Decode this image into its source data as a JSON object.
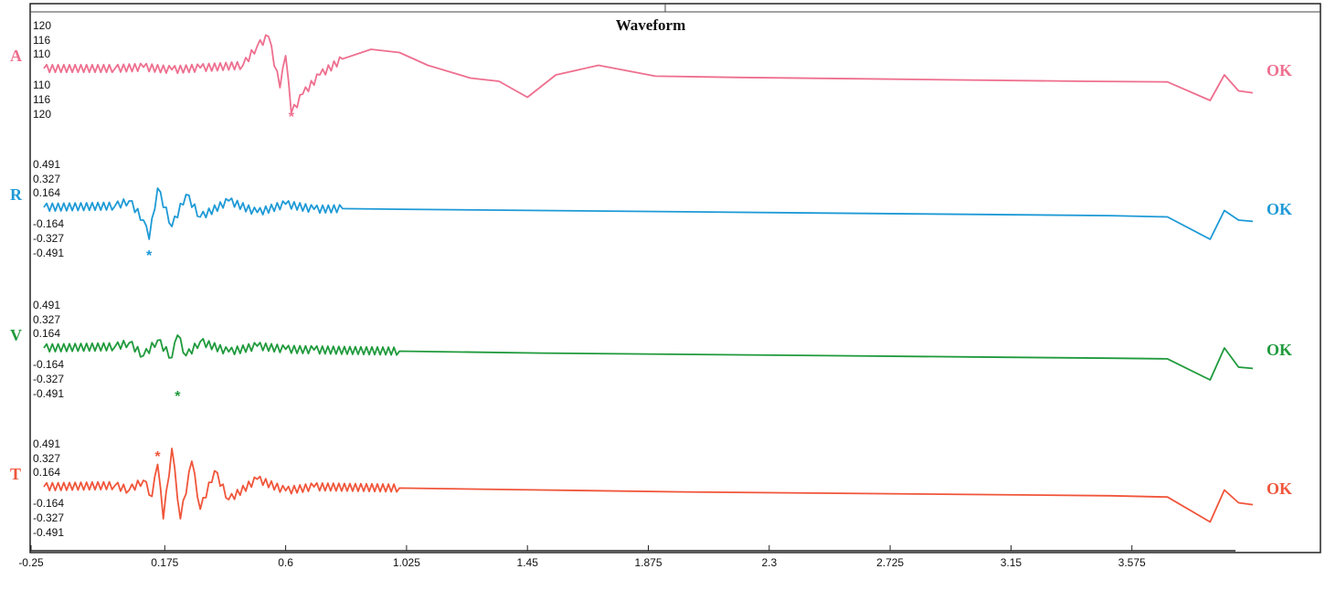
{
  "chart_data": {
    "type": "line",
    "title": "Waveform",
    "xlabel": "",
    "ylabel": "",
    "xlim": [
      -0.25,
      4.0
    ],
    "x_ticks": [
      "-0.25",
      "0.175",
      "0.6",
      "1.025",
      "1.45",
      "1.875",
      "2.3",
      "2.725",
      "3.15",
      "3.575"
    ],
    "grid": false,
    "series": [
      {
        "name": "A",
        "color": "#ee6f8f",
        "status": "OK",
        "y_ticks_upper": [
          "120",
          "116",
          "110"
        ],
        "y_ticks_lower": [
          "110",
          "116",
          "120"
        ],
        "pick_x": 0.62,
        "x": [
          -0.25,
          0.0,
          0.1,
          0.2,
          0.3,
          0.45,
          0.5,
          0.54,
          0.58,
          0.6,
          0.62,
          0.66,
          0.72,
          0.8,
          0.9,
          1.0,
          1.1,
          1.25,
          1.35,
          1.45,
          1.55,
          1.7,
          1.9,
          2.2,
          2.6,
          3.0,
          3.4,
          3.7,
          3.85,
          3.9,
          3.95,
          4.0
        ],
        "y": [
          0,
          0,
          0.02,
          -0.02,
          0.01,
          0.05,
          0.35,
          0.5,
          -0.3,
          0.2,
          -0.7,
          -0.4,
          -0.1,
          0.15,
          0.3,
          0.25,
          0.05,
          -0.15,
          -0.2,
          -0.45,
          -0.1,
          0.05,
          -0.12,
          -0.14,
          -0.16,
          -0.18,
          -0.2,
          -0.21,
          -0.5,
          -0.1,
          -0.35,
          -0.38
        ]
      },
      {
        "name": "R",
        "color": "#1e9ad6",
        "status": "OK",
        "y_ticks_upper": [
          "0.491",
          "0.327",
          "0.164"
        ],
        "y_ticks_lower": [
          "-0.164",
          "-0.327",
          "-0.491"
        ],
        "pick_x": 0.12,
        "x": [
          -0.25,
          0.0,
          0.05,
          0.1,
          0.12,
          0.15,
          0.2,
          0.25,
          0.3,
          0.4,
          0.5,
          0.6,
          0.7,
          0.8,
          1.0,
          1.5,
          2.0,
          2.5,
          3.0,
          3.5,
          3.7,
          3.85,
          3.9,
          3.95,
          4.0
        ],
        "y": [
          0,
          0.02,
          0.1,
          -0.2,
          -0.5,
          0.3,
          -0.3,
          0.2,
          -0.15,
          0.1,
          -0.08,
          0.05,
          -0.03,
          -0.02,
          -0.03,
          -0.05,
          -0.07,
          -0.09,
          -0.11,
          -0.13,
          -0.15,
          -0.5,
          -0.05,
          -0.2,
          -0.22
        ]
      },
      {
        "name": "V",
        "color": "#1f9a3c",
        "status": "OK",
        "y_ticks_upper": [
          "0.491",
          "0.327",
          "0.164"
        ],
        "y_ticks_lower": [
          "-0.164",
          "-0.327",
          "-0.491"
        ],
        "pick_x": 0.22,
        "x": [
          -0.25,
          0.0,
          0.05,
          0.1,
          0.15,
          0.2,
          0.22,
          0.25,
          0.3,
          0.4,
          0.5,
          0.6,
          0.7,
          1.0,
          1.5,
          2.0,
          2.5,
          3.0,
          3.5,
          3.7,
          3.85,
          3.9,
          3.95,
          4.0
        ],
        "y": [
          0,
          0.02,
          0.08,
          -0.12,
          0.12,
          -0.15,
          0.2,
          -0.12,
          0.1,
          -0.06,
          0.03,
          -0.02,
          -0.03,
          -0.05,
          -0.08,
          -0.1,
          -0.12,
          -0.14,
          -0.16,
          -0.17,
          -0.5,
          0.0,
          -0.3,
          -0.32
        ]
      },
      {
        "name": "T",
        "color": "#f0553a",
        "status": "OK",
        "y_ticks_upper": [
          "0.491",
          "0.327",
          "0.164"
        ],
        "y_ticks_lower": [
          "-0.164",
          "-0.327",
          "-0.491"
        ],
        "pick_x": 0.15,
        "x": [
          -0.25,
          0.0,
          0.05,
          0.1,
          0.13,
          0.15,
          0.17,
          0.2,
          0.23,
          0.27,
          0.3,
          0.35,
          0.4,
          0.5,
          0.6,
          0.7,
          1.0,
          1.5,
          2.0,
          2.5,
          3.0,
          3.5,
          3.7,
          3.85,
          3.9,
          3.95,
          4.0
        ],
        "y": [
          0,
          0.02,
          -0.05,
          0.1,
          -0.15,
          0.35,
          -0.5,
          0.6,
          -0.5,
          0.4,
          -0.35,
          0.25,
          -0.2,
          0.12,
          -0.06,
          0.0,
          -0.02,
          -0.05,
          -0.08,
          -0.1,
          -0.12,
          -0.14,
          -0.16,
          -0.55,
          -0.05,
          -0.25,
          -0.28
        ]
      }
    ]
  }
}
